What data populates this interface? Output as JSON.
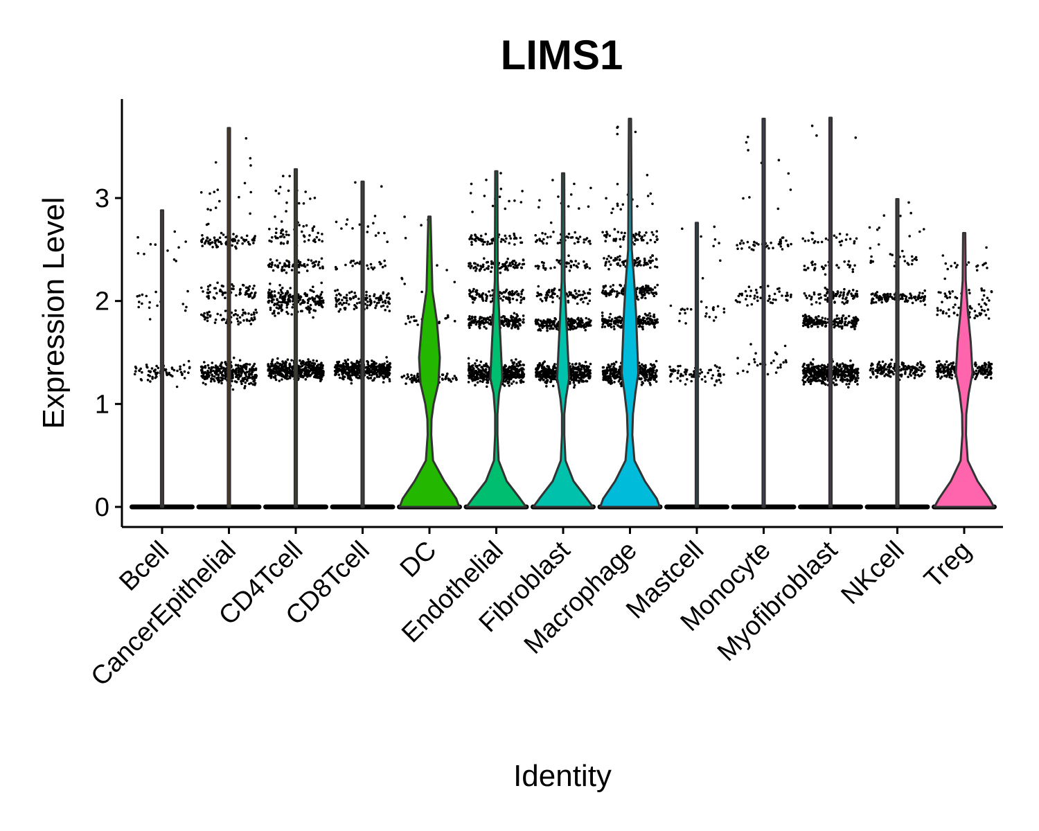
{
  "chart_data": {
    "type": "violin",
    "title": "LIMS1",
    "xlabel": "Identity",
    "ylabel": "Expression Level",
    "ylim": [
      -0.18,
      3.95
    ],
    "yticks": [
      0,
      1,
      2,
      3
    ],
    "categories": [
      "Bcell",
      "CancerEpithelial",
      "CD4Tcell",
      "CD8Tcell",
      "DC",
      "Endothelial",
      "Fibroblast",
      "Macrophage",
      "Mastcell",
      "Monocyte",
      "Myofibroblast",
      "NKcell",
      "Treg"
    ],
    "colors": [
      "#F8766D",
      "#E18A00",
      "#BE9C00",
      "#8CAB00",
      "#24B700",
      "#00BE70",
      "#00C1AB",
      "#00BBDA",
      "#00ACFC",
      "#8B93FF",
      "#D575FE",
      "#F962DD",
      "#FF65AC"
    ],
    "grid": false,
    "legend": "none",
    "max_value": [
      2.88,
      3.68,
      3.28,
      3.16,
      2.82,
      3.26,
      3.24,
      3.77,
      2.76,
      3.77,
      3.78,
      2.99,
      2.66
    ],
    "violin_profile": [
      {
        "values": [
          0,
          0.3,
          0.8,
          1.1,
          1.3,
          1.5,
          2.0,
          2.88
        ],
        "widths": [
          0,
          0,
          0,
          0,
          0,
          0,
          0,
          0
        ]
      },
      {
        "values": [
          0,
          0.3,
          0.8,
          1.1,
          1.3,
          1.5,
          2.0,
          3.68
        ],
        "widths": [
          0,
          0,
          0,
          0,
          0,
          0,
          0,
          0
        ]
      },
      {
        "values": [
          0,
          0.3,
          0.8,
          1.1,
          1.3,
          1.5,
          2.0,
          3.28
        ],
        "widths": [
          0,
          0,
          0,
          0,
          0,
          0,
          0,
          0
        ]
      },
      {
        "values": [
          0,
          0.3,
          0.8,
          1.1,
          1.3,
          1.5,
          2.0,
          3.16
        ],
        "widths": [
          0,
          0,
          0,
          0,
          0,
          0,
          0,
          0
        ]
      },
      {
        "values": [
          0,
          0.08,
          0.25,
          0.45,
          0.7,
          0.85,
          1.0,
          1.2,
          1.45,
          1.8,
          2.1,
          2.82
        ],
        "widths": [
          1,
          0.9,
          0.5,
          0.12,
          0.06,
          0.07,
          0.14,
          0.3,
          0.35,
          0.25,
          0.1,
          0
        ]
      },
      {
        "values": [
          0,
          0.08,
          0.25,
          0.45,
          0.7,
          0.9,
          1.1,
          1.25,
          1.5,
          1.8,
          2.2,
          3.26
        ],
        "widths": [
          1,
          0.8,
          0.35,
          0.08,
          0.04,
          0.04,
          0.09,
          0.2,
          0.16,
          0.11,
          0.05,
          0
        ]
      },
      {
        "values": [
          0,
          0.08,
          0.25,
          0.45,
          0.7,
          0.9,
          1.05,
          1.25,
          1.5,
          1.8,
          2.2,
          3.24
        ],
        "widths": [
          1,
          0.8,
          0.35,
          0.08,
          0.04,
          0.04,
          0.09,
          0.2,
          0.16,
          0.11,
          0.05,
          0
        ]
      },
      {
        "values": [
          0,
          0.08,
          0.25,
          0.45,
          0.7,
          0.9,
          1.1,
          1.3,
          1.6,
          1.9,
          2.2,
          2.5,
          3.77
        ],
        "widths": [
          1,
          0.9,
          0.5,
          0.15,
          0.08,
          0.1,
          0.18,
          0.28,
          0.24,
          0.2,
          0.14,
          0.06,
          0
        ]
      },
      {
        "values": [
          0,
          0.3,
          0.8,
          1.1,
          1.3,
          1.5,
          2.0,
          2.76
        ],
        "widths": [
          0,
          0,
          0,
          0,
          0,
          0,
          0,
          0
        ]
      },
      {
        "values": [
          0,
          0.3,
          0.8,
          1.1,
          1.3,
          1.5,
          2.0,
          3.77
        ],
        "widths": [
          0,
          0,
          0,
          0,
          0,
          0,
          0,
          0
        ]
      },
      {
        "values": [
          0,
          0.3,
          0.8,
          1.1,
          1.3,
          1.5,
          2.0,
          3.78
        ],
        "widths": [
          0,
          0,
          0,
          0,
          0,
          0,
          0,
          0
        ]
      },
      {
        "values": [
          0,
          0.3,
          0.8,
          1.1,
          1.3,
          1.5,
          2.0,
          2.99
        ],
        "widths": [
          0,
          0,
          0,
          0,
          0,
          0,
          0,
          0
        ]
      },
      {
        "values": [
          0,
          0.08,
          0.25,
          0.45,
          0.7,
          0.9,
          1.1,
          1.3,
          1.6,
          1.9,
          2.2,
          2.66
        ],
        "widths": [
          1,
          0.85,
          0.45,
          0.12,
          0.06,
          0.07,
          0.15,
          0.28,
          0.22,
          0.12,
          0.05,
          0
        ]
      }
    ],
    "expressing_cell_clusters": [
      [
        {
          "center": 1.3,
          "spread": 0.1,
          "count": 70
        },
        {
          "center": 2.0,
          "spread": 0.15,
          "count": 18
        },
        {
          "center": 2.5,
          "spread": 0.15,
          "count": 8
        }
      ],
      [
        {
          "center": 1.3,
          "spread": 0.1,
          "count": 300
        },
        {
          "center": 1.85,
          "spread": 0.07,
          "count": 60
        },
        {
          "center": 2.08,
          "spread": 0.08,
          "count": 70
        },
        {
          "center": 2.58,
          "spread": 0.07,
          "count": 80
        },
        {
          "center": 3.0,
          "spread": 0.3,
          "count": 15
        }
      ],
      [
        {
          "center": 1.33,
          "spread": 0.09,
          "count": 420
        },
        {
          "center": 2.0,
          "spread": 0.12,
          "count": 200
        },
        {
          "center": 2.35,
          "spread": 0.06,
          "count": 70
        },
        {
          "center": 2.65,
          "spread": 0.1,
          "count": 50
        },
        {
          "center": 3.0,
          "spread": 0.2,
          "count": 12
        }
      ],
      [
        {
          "center": 1.33,
          "spread": 0.09,
          "count": 400
        },
        {
          "center": 2.0,
          "spread": 0.1,
          "count": 110
        },
        {
          "center": 2.35,
          "spread": 0.05,
          "count": 25
        },
        {
          "center": 2.75,
          "spread": 0.2,
          "count": 12
        }
      ],
      [
        {
          "center": 1.25,
          "spread": 0.05,
          "count": 80
        },
        {
          "center": 1.82,
          "spread": 0.05,
          "count": 25
        },
        {
          "center": 2.2,
          "spread": 0.2,
          "count": 8
        }
      ],
      [
        {
          "center": 1.3,
          "spread": 0.1,
          "count": 450
        },
        {
          "center": 1.8,
          "spread": 0.06,
          "count": 200
        },
        {
          "center": 2.05,
          "spread": 0.06,
          "count": 100
        },
        {
          "center": 2.35,
          "spread": 0.06,
          "count": 90
        },
        {
          "center": 2.6,
          "spread": 0.07,
          "count": 60
        },
        {
          "center": 3.0,
          "spread": 0.15,
          "count": 12
        }
      ],
      [
        {
          "center": 1.3,
          "spread": 0.1,
          "count": 430
        },
        {
          "center": 1.78,
          "spread": 0.06,
          "count": 200
        },
        {
          "center": 2.05,
          "spread": 0.07,
          "count": 80
        },
        {
          "center": 2.35,
          "spread": 0.06,
          "count": 40
        },
        {
          "center": 2.6,
          "spread": 0.06,
          "count": 40
        },
        {
          "center": 3.0,
          "spread": 0.15,
          "count": 8
        }
      ],
      [
        {
          "center": 1.3,
          "spread": 0.1,
          "count": 360
        },
        {
          "center": 1.8,
          "spread": 0.06,
          "count": 200
        },
        {
          "center": 2.1,
          "spread": 0.07,
          "count": 120
        },
        {
          "center": 2.38,
          "spread": 0.06,
          "count": 80
        },
        {
          "center": 2.62,
          "spread": 0.07,
          "count": 60
        },
        {
          "center": 3.0,
          "spread": 0.25,
          "count": 15
        }
      ],
      [
        {
          "center": 1.28,
          "spread": 0.09,
          "count": 70
        },
        {
          "center": 1.9,
          "spread": 0.12,
          "count": 25
        },
        {
          "center": 2.5,
          "spread": 0.2,
          "count": 4
        }
      ],
      [
        {
          "center": 1.4,
          "spread": 0.12,
          "count": 25
        },
        {
          "center": 2.05,
          "spread": 0.1,
          "count": 45
        },
        {
          "center": 2.55,
          "spread": 0.06,
          "count": 40
        },
        {
          "center": 3.1,
          "spread": 0.3,
          "count": 8
        }
      ],
      [
        {
          "center": 1.3,
          "spread": 0.1,
          "count": 420
        },
        {
          "center": 1.8,
          "spread": 0.06,
          "count": 180
        },
        {
          "center": 2.05,
          "spread": 0.07,
          "count": 80
        },
        {
          "center": 2.35,
          "spread": 0.06,
          "count": 30
        },
        {
          "center": 2.6,
          "spread": 0.06,
          "count": 25
        }
      ],
      [
        {
          "center": 1.33,
          "spread": 0.08,
          "count": 160
        },
        {
          "center": 2.03,
          "spread": 0.05,
          "count": 110
        },
        {
          "center": 2.4,
          "spread": 0.06,
          "count": 20
        },
        {
          "center": 2.7,
          "spread": 0.15,
          "count": 8
        }
      ],
      [
        {
          "center": 1.33,
          "spread": 0.08,
          "count": 240
        },
        {
          "center": 1.9,
          "spread": 0.08,
          "count": 40
        },
        {
          "center": 2.05,
          "spread": 0.08,
          "count": 30
        },
        {
          "center": 2.35,
          "spread": 0.06,
          "count": 15
        }
      ]
    ]
  }
}
